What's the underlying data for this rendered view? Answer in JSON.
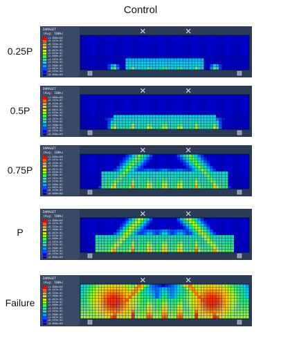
{
  "title": "Control",
  "legend": {
    "name": "DAMAGET",
    "avg": "(Avg: 100%)",
    "values": [
      "+1.000e+00",
      "+9.167e-01",
      "+8.333e-01",
      "+7.500e-01",
      "+6.667e-01",
      "+5.833e-01",
      "+5.000e-01",
      "+4.167e-01",
      "+3.333e-01",
      "+2.500e-01",
      "+1.667e-01",
      "+8.333e-02",
      "+0.000e+00"
    ],
    "colors": [
      "#ff0000",
      "#ff5a00",
      "#ffa000",
      "#ffd200",
      "#e6f000",
      "#a0ff00",
      "#3cff3c",
      "#00ff9a",
      "#00e6dc",
      "#00a0ff",
      "#0050ff",
      "#0000ff",
      "#0000c8"
    ]
  },
  "stages": [
    {
      "label": "0.25P",
      "damage_level": 0.3
    },
    {
      "label": "0.5P",
      "damage_level": 0.5
    },
    {
      "label": "0.75P",
      "damage_level": 0.65
    },
    {
      "label": "P",
      "damage_level": 0.75
    },
    {
      "label": "Failure",
      "damage_level": 1.0
    }
  ]
}
